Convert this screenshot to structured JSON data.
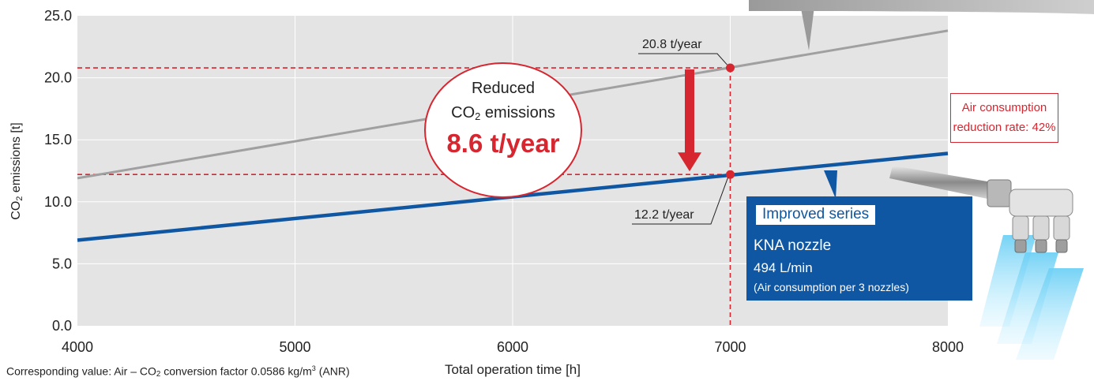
{
  "chart_data": {
    "type": "line",
    "x_range": [
      4000,
      8000
    ],
    "y_range": [
      0,
      25
    ],
    "x_ticks": [
      "4000",
      "5000",
      "6000",
      "7000",
      "8000"
    ],
    "y_ticks": [
      "0.0",
      "5.0",
      "10.0",
      "15.0",
      "20.0",
      "25.0"
    ],
    "xlabel": "Total operation time [h]",
    "ylabel_prefix": "CO",
    "ylabel_sub": "2",
    "ylabel_suffix": " emissions [t]",
    "grid": true,
    "series": [
      {
        "x": [
          4000,
          8000
        ],
        "y": [
          11.9,
          23.8
        ],
        "color": "#a0a0a0"
      },
      {
        "x": [
          4000,
          8000
        ],
        "y": [
          6.9,
          13.9
        ],
        "color": "#0f57a3"
      }
    ],
    "markers": [
      {
        "x": 7000,
        "y": 20.8,
        "label": "20.8 t/year"
      },
      {
        "x": 7000,
        "y": 12.2,
        "label": "12.2 t/year"
      }
    ],
    "callout": {
      "line1": "Reduced",
      "line2_prefix": "CO",
      "line2_sub": "2",
      "line2_suffix": " emissions",
      "value": "8.6 t/year"
    },
    "colors": {
      "highlight": "#d62630",
      "improved": "#0f57a3",
      "conventional": "#a0a0a0",
      "plot_bg": "#e4e4e4"
    }
  },
  "improved_box": {
    "tag": "Improved series",
    "name": "KNA nozzle",
    "rate": "494 L/min",
    "note": "(Air consumption per 3 nozzles)"
  },
  "reduction_box": {
    "line1": "Air consumption",
    "line2": "reduction rate: 42%"
  },
  "footnote": {
    "prefix": "Corresponding value: Air – CO",
    "sub": "2",
    "middle": " conversion factor 0.0586 kg/m",
    "sup": "3",
    "suffix": " (ANR)"
  }
}
